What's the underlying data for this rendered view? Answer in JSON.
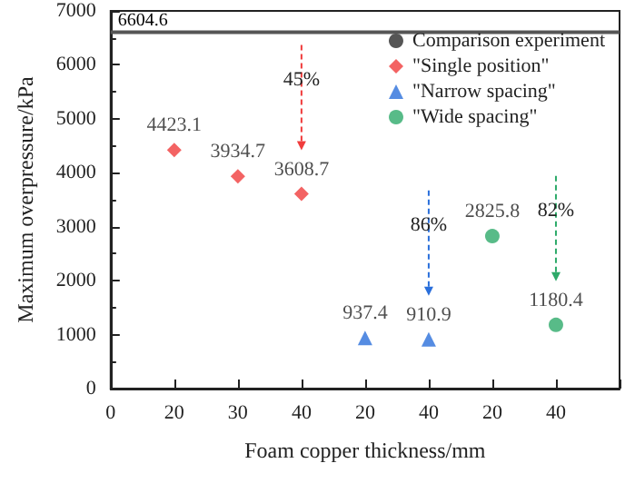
{
  "chart_data": {
    "type": "scatter",
    "xlabel": "Foam copper thickness/mm",
    "ylabel": "Maximum overpressure/kPa",
    "categories": [
      "0",
      "20",
      "30",
      "40",
      "20",
      "40",
      "20",
      "40",
      null
    ],
    "ylim": [
      0,
      7000
    ],
    "yticks": [
      0,
      1000,
      2000,
      3000,
      4000,
      5000,
      6000,
      7000
    ],
    "grid": false,
    "legend": "top right",
    "series": [
      {
        "name": "Comparison experiment",
        "type": "line",
        "marker": "none",
        "color": "#555555",
        "values": [
          6604.6,
          6604.6,
          6604.6,
          6604.6,
          6604.6,
          6604.6,
          6604.6,
          6604.6,
          6604.6
        ],
        "value_labels": [
          "6604.6",
          null,
          null,
          null,
          null,
          null,
          null,
          null,
          null
        ]
      },
      {
        "name": "\"Single position\"",
        "marker": "diamond",
        "color": "#f03c3c",
        "values": [
          null,
          4423.1,
          3934.7,
          3608.7,
          null,
          null,
          null,
          null,
          null
        ],
        "value_labels": [
          null,
          "4423.1",
          "3934.7",
          "3608.7",
          null,
          null,
          null,
          null,
          null
        ]
      },
      {
        "name": "\"Narrow spacing\"",
        "marker": "triangle",
        "color": "#2a6fdb",
        "values": [
          null,
          null,
          null,
          null,
          937.4,
          910.9,
          null,
          null,
          null
        ],
        "value_labels": [
          null,
          null,
          null,
          null,
          "937.4",
          "910.9",
          null,
          null,
          null
        ]
      },
      {
        "name": "\"Wide spacing\"",
        "marker": "circle",
        "color": "#2eaa6a",
        "values": [
          null,
          null,
          null,
          null,
          null,
          null,
          2825.8,
          1180.4,
          null
        ],
        "value_labels": [
          null,
          null,
          null,
          null,
          null,
          null,
          "2825.8",
          "1180.4",
          null
        ]
      }
    ],
    "annotations": [
      "45%",
      "86%",
      "82%"
    ]
  }
}
